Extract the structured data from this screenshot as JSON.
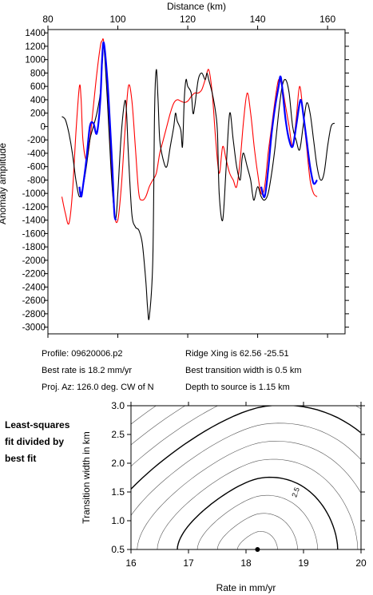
{
  "chart_data": [
    {
      "type": "line",
      "title": "",
      "xlabel": "Distance (km)",
      "ylabel": "Anomaly amplitude",
      "xlim": [
        80,
        165
      ],
      "ylim": [
        -3100,
        1450
      ],
      "xticks": [
        80,
        100,
        120,
        140,
        160
      ],
      "yticks": [
        1400,
        1200,
        1000,
        800,
        600,
        400,
        200,
        0,
        -200,
        -400,
        -600,
        -800,
        -1000,
        -1200,
        -1400,
        -1600,
        -1800,
        -2000,
        -2200,
        -2400,
        -2600,
        -2800,
        -3000
      ],
      "grid": false,
      "series": [
        {
          "key": "observed",
          "color": "#000000",
          "x": [
            84,
            85,
            86,
            87,
            88,
            89,
            90,
            91,
            92,
            93,
            94,
            95,
            95.5,
            96,
            97,
            98,
            99,
            99.5,
            100,
            101,
            102,
            102.5,
            103,
            104,
            105,
            106,
            107,
            108,
            108.5,
            109,
            110,
            110.5,
            111,
            111.5,
            112,
            113,
            114,
            115,
            116,
            116.5,
            117,
            118,
            118.5,
            119,
            119.5,
            120,
            121,
            121.5,
            122,
            123,
            124,
            125,
            125.5,
            126,
            127,
            128,
            128.5,
            129,
            130,
            131,
            132,
            133,
            134,
            135,
            135.5,
            136,
            137,
            138,
            138.5,
            139,
            140,
            141,
            142,
            143,
            144,
            145,
            146,
            147,
            148,
            149,
            150,
            151,
            152,
            153,
            154,
            155,
            156,
            157,
            158,
            159,
            160,
            161,
            162
          ],
          "y": [
            150,
            100,
            -100,
            -400,
            -800,
            -1050,
            -900,
            -600,
            -200,
            0,
            200,
            500,
            900,
            1200,
            400,
            -600,
            -1300,
            -1350,
            -1000,
            -100,
            380,
            200,
            -400,
            -1300,
            -1500,
            -1550,
            -1750,
            -2300,
            -2700,
            -2850,
            -2000,
            200,
            850,
            400,
            -200,
            -500,
            -600,
            -300,
            0,
            200,
            80,
            -50,
            -300,
            400,
            700,
            600,
            500,
            200,
            300,
            700,
            800,
            700,
            800,
            700,
            500,
            200,
            -100,
            -1000,
            -1400,
            -600,
            200,
            -200,
            -600,
            -800,
            -500,
            -400,
            -600,
            -800,
            -1000,
            -1100,
            -900,
            -1050,
            -1100,
            -1000,
            -700,
            -300,
            200,
            600,
            700,
            500,
            0,
            -200,
            -350,
            0,
            350,
            200,
            -200,
            -600,
            -800,
            -700,
            -300,
            0,
            50
          ],
          "visible_x_range": [
            84,
            162
          ]
        },
        {
          "key": "model_fit",
          "color": "#0000ff",
          "x": [
            89,
            89.5,
            90,
            91,
            92,
            93,
            94,
            95,
            95.5,
            96,
            97,
            98,
            98.5,
            99,
            99.5,
            141,
            142,
            143,
            144,
            145,
            146,
            146.5,
            147,
            148,
            149,
            150,
            151,
            152,
            152.5,
            153,
            154,
            155,
            156,
            157
          ],
          "y": [
            -900,
            -1050,
            -900,
            -500,
            0,
            50,
            -100,
            400,
            1000,
            1250,
            700,
            -200,
            -700,
            -1300,
            -1400,
            -900,
            -1050,
            -650,
            -100,
            300,
            600,
            750,
            600,
            100,
            -200,
            -300,
            0,
            350,
            380,
            200,
            -200,
            -600,
            -850,
            -800
          ],
          "segments": [
            [
              89,
              99.5
            ],
            [
              141,
              157
            ]
          ]
        },
        {
          "key": "synthetic",
          "color": "#ff0000",
          "x": [
            84,
            85,
            86,
            87,
            88,
            89,
            89.5,
            90,
            91,
            92,
            93,
            94,
            95,
            95.5,
            96,
            97,
            98,
            99,
            100,
            101,
            102,
            103,
            104,
            105,
            106,
            107,
            108,
            109,
            110,
            111,
            112,
            113,
            114,
            115,
            116,
            117,
            118,
            119,
            120,
            121,
            122,
            123,
            124,
            125,
            126,
            127,
            128,
            129,
            130,
            131,
            132,
            133,
            134,
            135,
            136,
            137,
            138,
            139,
            140,
            141,
            142,
            143,
            144,
            145,
            146,
            147,
            148,
            149,
            150,
            151,
            152,
            153,
            154,
            155,
            156,
            157
          ],
          "y": [
            -1050,
            -1300,
            -1450,
            -1000,
            -100,
            600,
            400,
            -200,
            -500,
            -200,
            300,
            800,
            1200,
            1280,
            1250,
            600,
            -500,
            -1300,
            -1400,
            -900,
            -100,
            600,
            400,
            -300,
            -1000,
            -1100,
            -1050,
            -900,
            -800,
            -700,
            -400,
            -200,
            0,
            200,
            350,
            400,
            380,
            360,
            380,
            450,
            500,
            500,
            550,
            700,
            850,
            500,
            -200,
            -700,
            -300,
            -500,
            -700,
            -800,
            -900,
            -500,
            100,
            500,
            200,
            -300,
            -700,
            -1000,
            -900,
            -400,
            0,
            400,
            700,
            600,
            300,
            0,
            -300,
            100,
            600,
            200,
            -300,
            -800,
            -1000,
            -1050
          ]
        }
      ]
    },
    {
      "type": "contour",
      "title": "",
      "xlabel": "Rate in mm/yr",
      "ylabel": "Transition width in km",
      "xlim": [
        16,
        20
      ],
      "ylim": [
        0.5,
        3.0
      ],
      "xticks": [
        16,
        17,
        18,
        19,
        20
      ],
      "yticks": [
        0.5,
        1.0,
        1.5,
        2.0,
        2.5,
        3.0
      ],
      "contour_label": "2.5",
      "best_fit": {
        "x": 18.2,
        "y": 0.5
      },
      "grid": false
    }
  ],
  "info": {
    "profile": "Profile: 09620006.p2",
    "ridge_xing": "Ridge Xing is 62.56 -25.51",
    "best_rate": "Best rate is 18.2 mm/yr",
    "best_width": "Best transition width is 0.5 km",
    "proj_az": "Proj. Az: 126.0 deg. CW of N",
    "depth": "Depth to source is   1.15 km"
  },
  "side_label": [
    "Least-squares",
    "fit divided by",
    "best fit"
  ]
}
